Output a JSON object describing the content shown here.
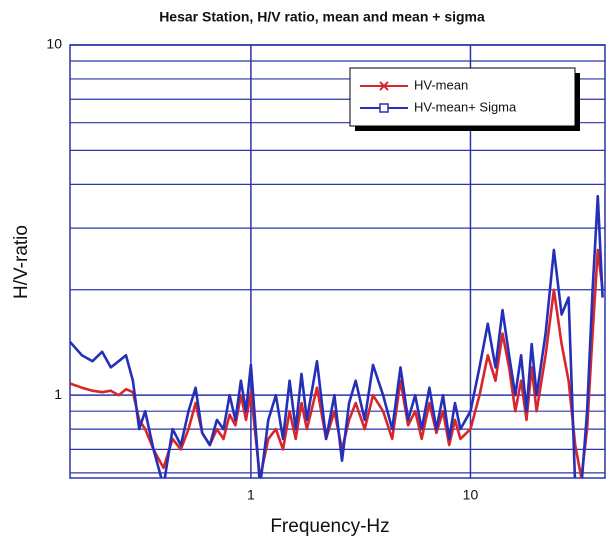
{
  "chart_data": {
    "type": "line",
    "title": "Hesar Station, H/V ratio, mean and mean + sigma",
    "x_label": "Frequency-Hz",
    "y_label": "H/V-ratio",
    "log_x": true,
    "log_y": true,
    "grid": true,
    "legend": "upper right",
    "xlim": [
      0.15,
      41
    ],
    "ylim": [
      0.58,
      10
    ],
    "xticks": [
      1,
      10
    ],
    "yticks": [
      1,
      10
    ],
    "y_minor_gridlines": [
      0.6,
      0.7,
      0.8,
      0.9,
      2,
      3,
      4,
      5,
      6,
      7,
      8,
      9
    ],
    "x": [
      0.15,
      0.17,
      0.19,
      0.21,
      0.23,
      0.25,
      0.27,
      0.29,
      0.31,
      0.33,
      0.36,
      0.4,
      0.44,
      0.48,
      0.52,
      0.56,
      0.6,
      0.65,
      0.7,
      0.75,
      0.8,
      0.85,
      0.9,
      0.95,
      1.0,
      1.1,
      1.2,
      1.3,
      1.4,
      1.5,
      1.6,
      1.7,
      1.8,
      2.0,
      2.2,
      2.4,
      2.6,
      2.8,
      3.0,
      3.3,
      3.6,
      4.0,
      4.4,
      4.8,
      5.2,
      5.6,
      6.0,
      6.5,
      7.0,
      7.5,
      8.0,
      8.5,
      9.0,
      10,
      11,
      12,
      13,
      14,
      15,
      16,
      17,
      18,
      19,
      20,
      22,
      24,
      26,
      28,
      30,
      32,
      34,
      36,
      38,
      40
    ],
    "series": [
      {
        "name": "HV-mean",
        "color": "#d9262b",
        "marker": "x",
        "values": [
          1.08,
          1.05,
          1.03,
          1.02,
          1.03,
          1.0,
          1.04,
          1.02,
          0.85,
          0.8,
          0.7,
          0.62,
          0.75,
          0.7,
          0.8,
          0.95,
          0.78,
          0.72,
          0.8,
          0.75,
          0.88,
          0.82,
          1.0,
          0.85,
          1.02,
          0.58,
          0.75,
          0.8,
          0.7,
          0.9,
          0.75,
          0.95,
          0.8,
          1.05,
          0.75,
          0.9,
          0.7,
          0.85,
          0.95,
          0.8,
          1.0,
          0.9,
          0.75,
          1.1,
          0.82,
          0.9,
          0.75,
          0.95,
          0.78,
          0.9,
          0.72,
          0.85,
          0.75,
          0.8,
          1.0,
          1.3,
          1.1,
          1.5,
          1.2,
          0.9,
          1.1,
          0.85,
          1.2,
          0.9,
          1.3,
          2.0,
          1.4,
          1.1,
          0.72,
          0.58,
          0.8,
          1.5,
          2.6,
          2.0
        ]
      },
      {
        "name": "HV-mean+ Sigma",
        "color": "#2430b8",
        "marker": "square",
        "values": [
          1.42,
          1.3,
          1.25,
          1.33,
          1.2,
          1.25,
          1.3,
          1.1,
          0.8,
          0.9,
          0.7,
          0.55,
          0.8,
          0.72,
          0.9,
          1.05,
          0.78,
          0.72,
          0.85,
          0.8,
          1.0,
          0.85,
          1.1,
          0.9,
          1.22,
          0.55,
          0.85,
          1.0,
          0.75,
          1.1,
          0.8,
          1.15,
          0.85,
          1.25,
          0.75,
          1.0,
          0.65,
          0.95,
          1.1,
          0.85,
          1.22,
          1.0,
          0.8,
          1.2,
          0.85,
          1.0,
          0.8,
          1.05,
          0.8,
          1.0,
          0.75,
          0.95,
          0.8,
          0.9,
          1.2,
          1.6,
          1.2,
          1.75,
          1.3,
          1.0,
          1.3,
          0.9,
          1.4,
          1.0,
          1.5,
          2.6,
          1.7,
          1.9,
          0.55,
          0.55,
          0.9,
          2.0,
          3.7,
          1.9
        ]
      }
    ]
  }
}
